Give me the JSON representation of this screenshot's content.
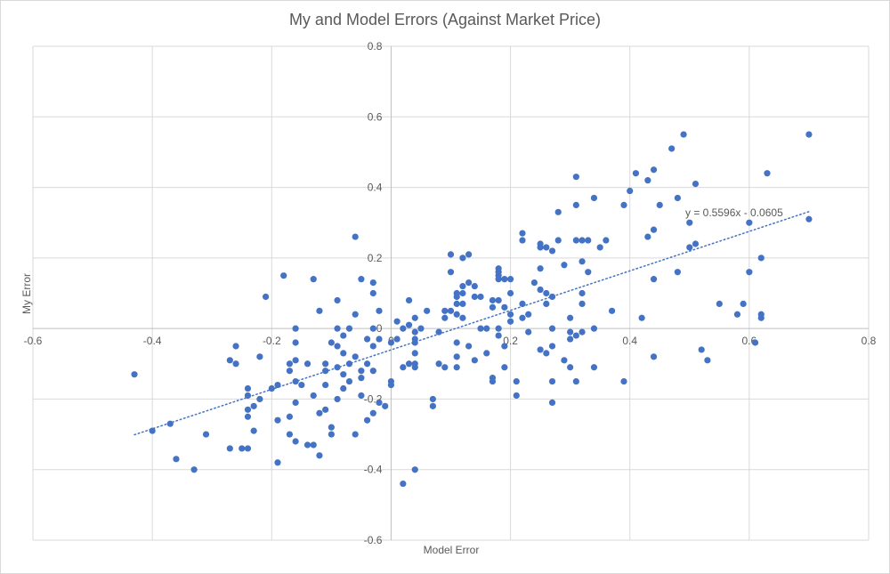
{
  "chart_data": {
    "type": "scatter",
    "title": "My and Model Errors (Against Market Price)",
    "xlabel": "Model Error",
    "ylabel": "My Error",
    "xlim": [
      -0.6,
      0.8
    ],
    "ylim": [
      -0.6,
      0.8
    ],
    "x_ticks": [
      "-0.6",
      "-0.4",
      "-0.2",
      "0",
      "0.2",
      "0.4",
      "0.6",
      "0.8"
    ],
    "y_ticks": [
      "-0.6",
      "-0.4",
      "-0.2",
      "0",
      "0.2",
      "0.4",
      "0.6",
      "0.8"
    ],
    "grid": true,
    "marker_color": "#4472c4",
    "trendline": {
      "type": "linear",
      "slope": 0.5596,
      "intercept": -0.0605,
      "x_range": [
        -0.43,
        0.7
      ],
      "equation": "y = 0.5596x - 0.0605",
      "color": "#4472c4"
    },
    "points": [
      [
        -0.43,
        -0.13
      ],
      [
        -0.4,
        -0.29
      ],
      [
        -0.37,
        -0.27
      ],
      [
        -0.36,
        -0.37
      ],
      [
        -0.33,
        -0.4
      ],
      [
        -0.31,
        -0.3
      ],
      [
        -0.27,
        -0.34
      ],
      [
        -0.27,
        -0.09
      ],
      [
        -0.26,
        -0.05
      ],
      [
        -0.26,
        -0.1
      ],
      [
        -0.25,
        -0.34
      ],
      [
        -0.24,
        -0.34
      ],
      [
        -0.24,
        -0.17
      ],
      [
        -0.24,
        -0.19
      ],
      [
        -0.24,
        -0.23
      ],
      [
        -0.24,
        -0.25
      ],
      [
        -0.23,
        -0.22
      ],
      [
        -0.23,
        -0.29
      ],
      [
        -0.22,
        -0.08
      ],
      [
        -0.22,
        -0.2
      ],
      [
        -0.21,
        0.09
      ],
      [
        -0.2,
        -0.17
      ],
      [
        -0.19,
        -0.16
      ],
      [
        -0.19,
        -0.26
      ],
      [
        -0.19,
        -0.38
      ],
      [
        -0.18,
        0.15
      ],
      [
        -0.17,
        -0.1
      ],
      [
        -0.17,
        -0.12
      ],
      [
        -0.17,
        -0.25
      ],
      [
        -0.17,
        -0.3
      ],
      [
        -0.16,
        0.0
      ],
      [
        -0.16,
        -0.04
      ],
      [
        -0.16,
        -0.09
      ],
      [
        -0.16,
        -0.15
      ],
      [
        -0.16,
        -0.21
      ],
      [
        -0.16,
        -0.32
      ],
      [
        -0.15,
        -0.16
      ],
      [
        -0.14,
        -0.1
      ],
      [
        -0.14,
        -0.33
      ],
      [
        -0.13,
        0.14
      ],
      [
        -0.13,
        -0.19
      ],
      [
        -0.13,
        -0.33
      ],
      [
        -0.12,
        0.05
      ],
      [
        -0.12,
        -0.24
      ],
      [
        -0.12,
        -0.36
      ],
      [
        -0.11,
        -0.1
      ],
      [
        -0.11,
        -0.12
      ],
      [
        -0.11,
        -0.16
      ],
      [
        -0.11,
        -0.23
      ],
      [
        -0.1,
        -0.04
      ],
      [
        -0.1,
        -0.28
      ],
      [
        -0.1,
        -0.3
      ],
      [
        -0.09,
        0.08
      ],
      [
        -0.09,
        0.0
      ],
      [
        -0.09,
        -0.05
      ],
      [
        -0.09,
        -0.11
      ],
      [
        -0.09,
        -0.2
      ],
      [
        -0.08,
        -0.02
      ],
      [
        -0.08,
        -0.07
      ],
      [
        -0.08,
        -0.13
      ],
      [
        -0.08,
        -0.17
      ],
      [
        -0.07,
        0.0
      ],
      [
        -0.07,
        -0.1
      ],
      [
        -0.07,
        -0.15
      ],
      [
        -0.06,
        0.04
      ],
      [
        -0.06,
        0.26
      ],
      [
        -0.06,
        -0.08
      ],
      [
        -0.06,
        -0.3
      ],
      [
        -0.05,
        0.14
      ],
      [
        -0.05,
        -0.12
      ],
      [
        -0.05,
        -0.14
      ],
      [
        -0.05,
        -0.19
      ],
      [
        -0.04,
        -0.03
      ],
      [
        -0.04,
        -0.1
      ],
      [
        -0.04,
        -0.26
      ],
      [
        -0.03,
        0.13
      ],
      [
        -0.03,
        0.1
      ],
      [
        -0.03,
        0.0
      ],
      [
        -0.03,
        -0.05
      ],
      [
        -0.03,
        -0.12
      ],
      [
        -0.03,
        -0.24
      ],
      [
        -0.02,
        0.05
      ],
      [
        -0.02,
        -0.03
      ],
      [
        -0.02,
        -0.21
      ],
      [
        -0.01,
        -0.22
      ],
      [
        0.0,
        -0.04
      ],
      [
        0.0,
        -0.15
      ],
      [
        0.0,
        -0.16
      ],
      [
        0.01,
        0.02
      ],
      [
        0.01,
        -0.03
      ],
      [
        0.02,
        0.0
      ],
      [
        0.02,
        -0.11
      ],
      [
        0.02,
        -0.44
      ],
      [
        0.03,
        0.08
      ],
      [
        0.03,
        0.01
      ],
      [
        0.03,
        -0.1
      ],
      [
        0.04,
        0.03
      ],
      [
        0.04,
        -0.01
      ],
      [
        0.04,
        -0.03
      ],
      [
        0.04,
        -0.04
      ],
      [
        0.04,
        -0.07
      ],
      [
        0.04,
        -0.1
      ],
      [
        0.04,
        -0.11
      ],
      [
        0.04,
        -0.4
      ],
      [
        0.05,
        0.0
      ],
      [
        0.06,
        0.05
      ],
      [
        0.07,
        -0.2
      ],
      [
        0.07,
        -0.22
      ],
      [
        0.08,
        -0.01
      ],
      [
        0.08,
        -0.1
      ],
      [
        0.09,
        0.05
      ],
      [
        0.09,
        0.03
      ],
      [
        0.09,
        -0.11
      ],
      [
        0.1,
        0.21
      ],
      [
        0.1,
        0.16
      ],
      [
        0.1,
        0.05
      ],
      [
        0.11,
        0.1
      ],
      [
        0.11,
        0.09
      ],
      [
        0.11,
        0.07
      ],
      [
        0.11,
        0.04
      ],
      [
        0.11,
        -0.04
      ],
      [
        0.11,
        -0.08
      ],
      [
        0.11,
        -0.11
      ],
      [
        0.12,
        0.2
      ],
      [
        0.12,
        0.12
      ],
      [
        0.12,
        0.1
      ],
      [
        0.12,
        0.07
      ],
      [
        0.12,
        0.03
      ],
      [
        0.13,
        0.21
      ],
      [
        0.13,
        0.13
      ],
      [
        0.13,
        -0.05
      ],
      [
        0.14,
        0.12
      ],
      [
        0.14,
        0.09
      ],
      [
        0.14,
        -0.09
      ],
      [
        0.15,
        0.09
      ],
      [
        0.15,
        0.0
      ],
      [
        0.16,
        0.0
      ],
      [
        0.16,
        -0.07
      ],
      [
        0.17,
        0.08
      ],
      [
        0.17,
        0.06
      ],
      [
        0.17,
        -0.14
      ],
      [
        0.17,
        -0.15
      ],
      [
        0.18,
        0.17
      ],
      [
        0.18,
        0.16
      ],
      [
        0.18,
        0.15
      ],
      [
        0.18,
        0.14
      ],
      [
        0.18,
        0.08
      ],
      [
        0.18,
        0.0
      ],
      [
        0.18,
        -0.02
      ],
      [
        0.19,
        0.14
      ],
      [
        0.19,
        0.06
      ],
      [
        0.19,
        -0.05
      ],
      [
        0.19,
        -0.11
      ],
      [
        0.2,
        0.14
      ],
      [
        0.2,
        0.1
      ],
      [
        0.2,
        0.04
      ],
      [
        0.2,
        0.02
      ],
      [
        0.21,
        -0.19
      ],
      [
        0.21,
        -0.15
      ],
      [
        0.22,
        0.27
      ],
      [
        0.22,
        0.25
      ],
      [
        0.22,
        0.07
      ],
      [
        0.22,
        0.03
      ],
      [
        0.23,
        0.04
      ],
      [
        0.23,
        -0.01
      ],
      [
        0.24,
        0.13
      ],
      [
        0.25,
        0.24
      ],
      [
        0.25,
        0.23
      ],
      [
        0.25,
        0.17
      ],
      [
        0.25,
        0.11
      ],
      [
        0.25,
        -0.06
      ],
      [
        0.26,
        0.23
      ],
      [
        0.26,
        0.1
      ],
      [
        0.26,
        0.07
      ],
      [
        0.26,
        -0.07
      ],
      [
        0.27,
        0.22
      ],
      [
        0.27,
        0.09
      ],
      [
        0.27,
        0.0
      ],
      [
        0.27,
        -0.05
      ],
      [
        0.27,
        -0.15
      ],
      [
        0.27,
        -0.21
      ],
      [
        0.28,
        0.33
      ],
      [
        0.28,
        0.25
      ],
      [
        0.29,
        0.18
      ],
      [
        0.29,
        -0.09
      ],
      [
        0.3,
        0.03
      ],
      [
        0.3,
        -0.01
      ],
      [
        0.3,
        -0.03
      ],
      [
        0.3,
        -0.11
      ],
      [
        0.31,
        0.43
      ],
      [
        0.31,
        0.35
      ],
      [
        0.31,
        0.25
      ],
      [
        0.31,
        -0.02
      ],
      [
        0.31,
        -0.15
      ],
      [
        0.32,
        0.25
      ],
      [
        0.32,
        0.19
      ],
      [
        0.32,
        0.1
      ],
      [
        0.32,
        0.07
      ],
      [
        0.32,
        -0.01
      ],
      [
        0.33,
        0.25
      ],
      [
        0.33,
        0.16
      ],
      [
        0.34,
        0.37
      ],
      [
        0.34,
        0.0
      ],
      [
        0.34,
        -0.11
      ],
      [
        0.35,
        0.23
      ],
      [
        0.36,
        0.25
      ],
      [
        0.37,
        0.05
      ],
      [
        0.39,
        0.35
      ],
      [
        0.39,
        -0.15
      ],
      [
        0.4,
        0.39
      ],
      [
        0.41,
        0.44
      ],
      [
        0.42,
        0.03
      ],
      [
        0.43,
        0.42
      ],
      [
        0.43,
        0.26
      ],
      [
        0.44,
        0.45
      ],
      [
        0.44,
        0.28
      ],
      [
        0.44,
        0.14
      ],
      [
        0.44,
        -0.08
      ],
      [
        0.45,
        0.35
      ],
      [
        0.47,
        0.51
      ],
      [
        0.48,
        0.37
      ],
      [
        0.48,
        0.16
      ],
      [
        0.49,
        0.55
      ],
      [
        0.5,
        0.3
      ],
      [
        0.5,
        0.23
      ],
      [
        0.51,
        0.41
      ],
      [
        0.51,
        0.24
      ],
      [
        0.52,
        -0.06
      ],
      [
        0.53,
        -0.09
      ],
      [
        0.55,
        0.07
      ],
      [
        0.58,
        0.04
      ],
      [
        0.59,
        0.07
      ],
      [
        0.6,
        0.3
      ],
      [
        0.6,
        0.16
      ],
      [
        0.61,
        -0.04
      ],
      [
        0.62,
        0.2
      ],
      [
        0.62,
        0.04
      ],
      [
        0.62,
        0.03
      ],
      [
        0.63,
        0.44
      ],
      [
        0.7,
        0.55
      ],
      [
        0.7,
        0.31
      ]
    ]
  }
}
